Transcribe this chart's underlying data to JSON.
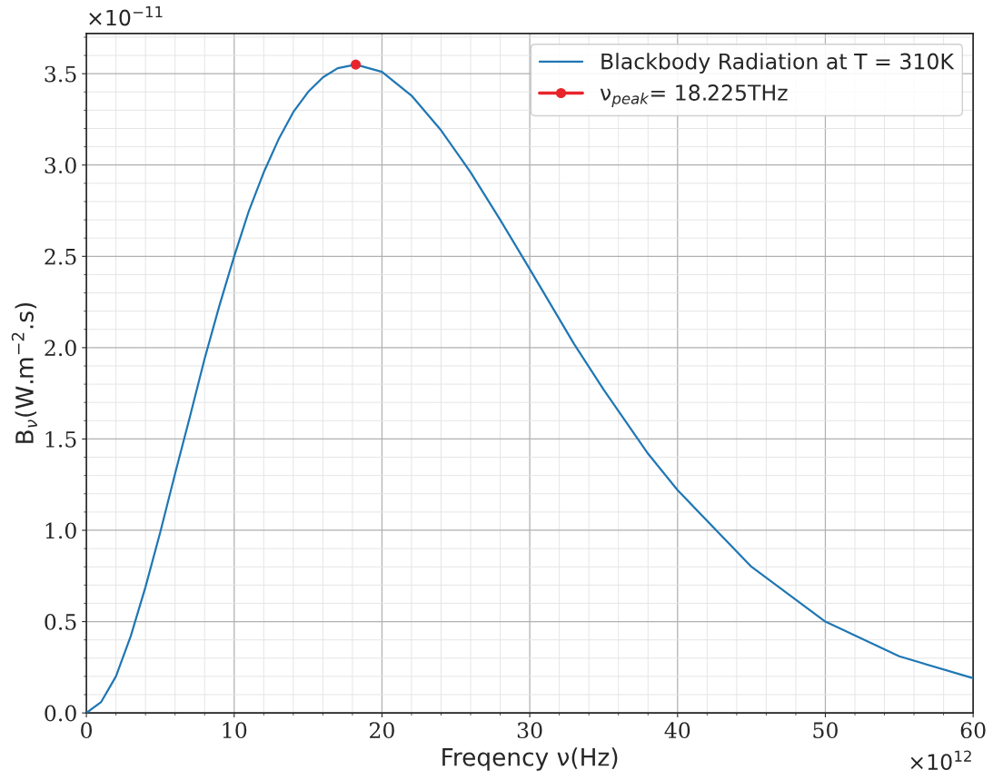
{
  "chart_data": {
    "type": "line",
    "xlabel": "Freqency ν(Hz)",
    "ylabel": "B$_{ν}$(W.m$^{−2}$.s)",
    "annotations": [
      "×10$^{−11}$",
      "×10$^{12}$"
    ],
    "series": [
      {
        "name": "Blackbody Radiation at T = 310K",
        "color": "#1f77b4",
        "marker": "none",
        "x": [
          0,
          1,
          2,
          3,
          4,
          5,
          6,
          7,
          8,
          9,
          10,
          11,
          12,
          13,
          14,
          15,
          16,
          17,
          18.225,
          20,
          22,
          24,
          26,
          28,
          30,
          33,
          35,
          38,
          40,
          45,
          50,
          55,
          60
        ],
        "values": [
          0,
          0.06,
          0.2,
          0.42,
          0.69,
          0.99,
          1.31,
          1.62,
          1.94,
          2.23,
          2.5,
          2.75,
          2.96,
          3.14,
          3.29,
          3.4,
          3.48,
          3.53,
          3.55,
          3.51,
          3.38,
          3.19,
          2.96,
          2.7,
          2.43,
          2.02,
          1.77,
          1.42,
          1.22,
          0.8,
          0.5,
          0.31,
          0.19
        ]
      },
      {
        "name": "ν$_{peak}$= 18.225THz",
        "color": "#e8252b",
        "marker": "circle",
        "x": [
          18.225
        ],
        "values": [
          3.55
        ]
      }
    ],
    "xlim": [
      0,
      60
    ],
    "xticks": [
      0,
      10,
      20,
      30,
      40,
      50,
      60
    ],
    "ylim": [
      0,
      3.72
    ],
    "yticks": [
      {
        "value": 0,
        "label": "0.0"
      },
      0.5,
      {
        "value": 1,
        "label": "1.0"
      },
      1.5,
      {
        "value": 2,
        "label": "2.0"
      },
      2.5,
      {
        "value": 3,
        "label": "3.0"
      },
      3.5
    ],
    "grid": true,
    "legend": "top right"
  }
}
